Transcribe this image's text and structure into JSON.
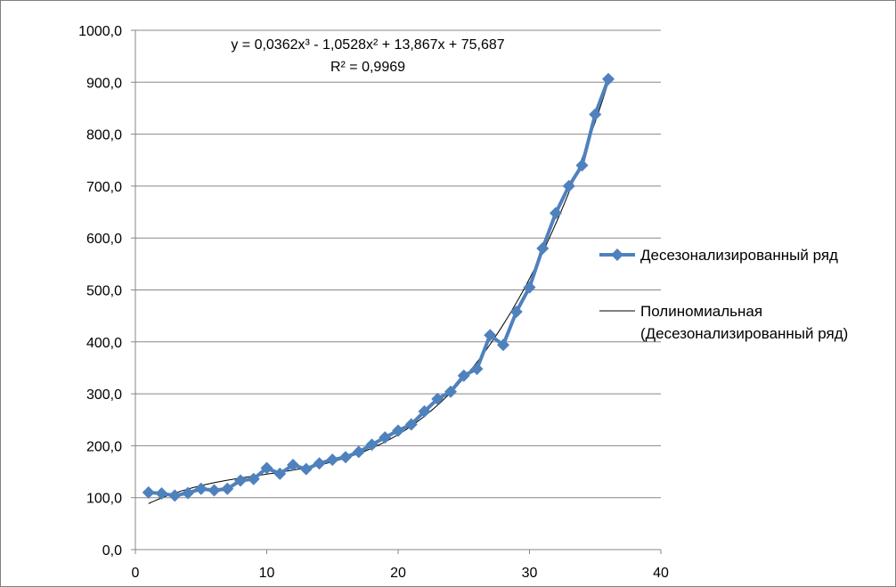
{
  "chart_data": {
    "type": "scatter",
    "x": [
      1,
      2,
      3,
      4,
      5,
      6,
      7,
      8,
      9,
      10,
      11,
      12,
      13,
      14,
      15,
      16,
      17,
      18,
      19,
      20,
      21,
      22,
      23,
      24,
      25,
      26,
      27,
      28,
      29,
      30,
      31,
      32,
      33,
      34,
      35,
      36
    ],
    "series": [
      {
        "name": "Десезонализированный ряд",
        "color": "#4f81bd",
        "marker": "diamond",
        "values": [
          110,
          108,
          104,
          109,
          117,
          114,
          117,
          133,
          136,
          157,
          146,
          163,
          155,
          166,
          173,
          178,
          188,
          202,
          216,
          229,
          241,
          266,
          290,
          304,
          335,
          348,
          413,
          394,
          458,
          505,
          580,
          648,
          700,
          740,
          838,
          906
        ]
      },
      {
        "name": "Полиномиальная (Десезонализированный ряд)",
        "type": "trendline-poly3",
        "color": "#000000",
        "coefficients": {
          "a3": 0.0362,
          "a2": -1.0528,
          "a1": 13.867,
          "a0": 75.687
        }
      }
    ],
    "annotations": {
      "equation": "y = 0,0362x³ - 1,0528x² + 13,867x + 75,687",
      "r_squared": "R² = 0,9969"
    },
    "xlim": [
      0,
      40
    ],
    "ylim": [
      0,
      1000
    ],
    "x_ticks": [
      "0",
      "10",
      "20",
      "30",
      "40"
    ],
    "y_ticks": [
      "0,0",
      "100,0",
      "200,0",
      "300,0",
      "400,0",
      "500,0",
      "600,0",
      "700,0",
      "800,0",
      "900,0",
      "1000,0"
    ],
    "grid": "horizontal",
    "legend_position": "right",
    "legend": [
      "Десезонализированный ряд",
      "Полиномиальная",
      "(Десезонализированный ряд)"
    ]
  }
}
